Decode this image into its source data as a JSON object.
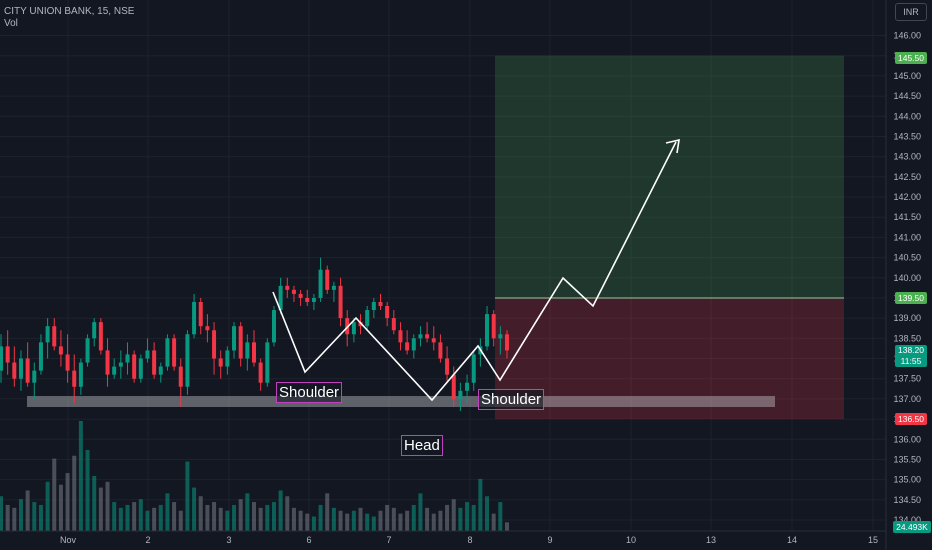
{
  "header": {
    "symbol": "CITY UNION BANK, 15, NSE",
    "indicator": "Vol",
    "currency": "INR"
  },
  "chart_data": {
    "type": "candlestick",
    "symbol": "CITY UNION BANK",
    "interval": "15",
    "exchange": "NSE",
    "currency": "INR",
    "ylim": [
      133.85,
      146.3
    ],
    "yticks": [
      "146.00",
      "145.50",
      "145.00",
      "144.50",
      "144.00",
      "143.50",
      "143.00",
      "142.50",
      "142.00",
      "141.50",
      "141.00",
      "140.50",
      "140.00",
      "139.50",
      "139.00",
      "138.50",
      "138.00",
      "137.50",
      "137.00",
      "136.50",
      "136.00",
      "135.50",
      "135.00",
      "134.50",
      "134.00"
    ],
    "xticks": [
      "Nov",
      "2",
      "3",
      "6",
      "7",
      "8",
      "9",
      "10",
      "13",
      "14",
      "15"
    ],
    "last_price": "138.20",
    "countdown": "11:55",
    "target_price": "145.50",
    "entry_price": "139.50",
    "stop_price": "136.50",
    "last_volume": "24.493K",
    "candles": [
      [
        137.7,
        138.6,
        137.4,
        138.3
      ],
      [
        138.3,
        138.7,
        137.6,
        137.9
      ],
      [
        137.9,
        138.3,
        137.3,
        137.5
      ],
      [
        137.5,
        138.2,
        137.2,
        138.0
      ],
      [
        138.0,
        138.4,
        137.3,
        137.4
      ],
      [
        137.4,
        137.9,
        137.0,
        137.7
      ],
      [
        137.7,
        138.6,
        137.6,
        138.4
      ],
      [
        138.4,
        139.0,
        138.0,
        138.8
      ],
      [
        138.8,
        139.0,
        138.2,
        138.3
      ],
      [
        138.3,
        138.7,
        137.8,
        138.1
      ],
      [
        138.1,
        138.6,
        137.4,
        137.7
      ],
      [
        137.7,
        138.1,
        136.9,
        137.3
      ],
      [
        137.3,
        138.0,
        137.1,
        137.9
      ],
      [
        137.9,
        138.6,
        137.8,
        138.5
      ],
      [
        138.5,
        139.0,
        138.3,
        138.9
      ],
      [
        138.9,
        139.0,
        138.1,
        138.2
      ],
      [
        138.2,
        138.5,
        137.3,
        137.6
      ],
      [
        137.6,
        138.0,
        137.5,
        137.8
      ],
      [
        137.8,
        138.2,
        137.5,
        137.9
      ],
      [
        137.9,
        138.4,
        137.6,
        138.1
      ],
      [
        138.1,
        138.2,
        137.4,
        137.5
      ],
      [
        137.5,
        138.1,
        137.4,
        138.0
      ],
      [
        138.0,
        138.5,
        137.9,
        138.2
      ],
      [
        138.2,
        138.4,
        137.5,
        137.6
      ],
      [
        137.6,
        137.9,
        137.4,
        137.8
      ],
      [
        137.8,
        138.6,
        137.7,
        138.5
      ],
      [
        138.5,
        138.6,
        137.7,
        137.8
      ],
      [
        137.8,
        138.0,
        136.8,
        137.3
      ],
      [
        137.3,
        138.7,
        137.1,
        138.6
      ],
      [
        138.6,
        139.6,
        138.5,
        139.4
      ],
      [
        139.4,
        139.5,
        138.6,
        138.8
      ],
      [
        138.8,
        139.1,
        138.4,
        138.7
      ],
      [
        138.7,
        138.9,
        137.6,
        138.0
      ],
      [
        138.0,
        138.2,
        137.5,
        137.8
      ],
      [
        137.8,
        138.3,
        137.6,
        138.2
      ],
      [
        138.2,
        138.9,
        138.0,
        138.8
      ],
      [
        138.8,
        138.9,
        137.8,
        138.0
      ],
      [
        138.0,
        138.6,
        137.7,
        138.4
      ],
      [
        138.4,
        138.7,
        137.8,
        137.9
      ],
      [
        137.9,
        138.0,
        137.2,
        137.4
      ],
      [
        137.4,
        138.5,
        137.3,
        138.4
      ],
      [
        138.4,
        139.3,
        138.3,
        139.2
      ],
      [
        139.2,
        140.0,
        139.1,
        139.8
      ],
      [
        139.8,
        140.0,
        139.5,
        139.7
      ],
      [
        139.7,
        139.8,
        139.4,
        139.6
      ],
      [
        139.6,
        139.7,
        139.3,
        139.5
      ],
      [
        139.5,
        139.7,
        139.3,
        139.4
      ],
      [
        139.4,
        139.6,
        139.2,
        139.5
      ],
      [
        139.5,
        140.5,
        139.4,
        140.2
      ],
      [
        140.2,
        140.3,
        139.6,
        139.7
      ],
      [
        139.7,
        139.9,
        139.4,
        139.8
      ],
      [
        139.8,
        140.0,
        138.8,
        139.0
      ],
      [
        139.0,
        139.2,
        138.3,
        138.6
      ],
      [
        138.6,
        139.0,
        138.4,
        138.9
      ],
      [
        138.9,
        139.1,
        138.6,
        138.8
      ],
      [
        138.8,
        139.3,
        138.7,
        139.2
      ],
      [
        139.2,
        139.5,
        139.0,
        139.4
      ],
      [
        139.4,
        139.6,
        139.2,
        139.3
      ],
      [
        139.3,
        139.4,
        138.8,
        139.0
      ],
      [
        139.0,
        139.2,
        138.6,
        138.7
      ],
      [
        138.7,
        138.9,
        138.2,
        138.4
      ],
      [
        138.4,
        138.7,
        138.1,
        138.2
      ],
      [
        138.2,
        138.6,
        138.0,
        138.5
      ],
      [
        138.5,
        138.8,
        138.3,
        138.6
      ],
      [
        138.6,
        138.9,
        138.4,
        138.5
      ],
      [
        138.5,
        138.8,
        138.2,
        138.4
      ],
      [
        138.4,
        138.6,
        137.9,
        138.0
      ],
      [
        138.0,
        138.3,
        137.4,
        137.6
      ],
      [
        137.6,
        137.8,
        136.8,
        137.0
      ],
      [
        137.0,
        137.4,
        136.7,
        137.2
      ],
      [
        137.2,
        137.6,
        136.9,
        137.4
      ],
      [
        137.4,
        138.2,
        137.2,
        138.1
      ],
      [
        138.1,
        138.5,
        137.8,
        138.3
      ],
      [
        138.3,
        139.3,
        138.2,
        139.1
      ],
      [
        139.1,
        139.2,
        138.3,
        138.5
      ],
      [
        138.5,
        138.8,
        138.1,
        138.6
      ],
      [
        138.6,
        138.7,
        138.0,
        138.2
      ]
    ],
    "volumes": [
      1.2,
      0.9,
      0.8,
      1.1,
      1.4,
      1.0,
      0.9,
      1.7,
      2.5,
      1.6,
      2.0,
      2.6,
      3.8,
      2.8,
      1.9,
      1.5,
      1.7,
      1.0,
      0.8,
      0.9,
      1.0,
      1.1,
      0.7,
      0.8,
      0.9,
      1.3,
      1.0,
      0.7,
      2.4,
      1.5,
      1.2,
      0.9,
      1.0,
      0.8,
      0.7,
      0.9,
      1.1,
      1.3,
      1.0,
      0.8,
      0.9,
      1.0,
      1.4,
      1.2,
      0.8,
      0.7,
      0.6,
      0.5,
      0.9,
      1.3,
      0.8,
      0.7,
      0.6,
      0.7,
      0.8,
      0.6,
      0.5,
      0.7,
      0.9,
      0.8,
      0.6,
      0.7,
      0.9,
      1.3,
      0.8,
      0.6,
      0.7,
      0.9,
      1.1,
      0.8,
      1.0,
      0.9,
      1.8,
      1.2,
      0.6,
      1.0,
      0.3
    ]
  },
  "annotations": {
    "left_shoulder": "Shoulder",
    "head": "Head",
    "right_shoulder": "Shoulder"
  }
}
